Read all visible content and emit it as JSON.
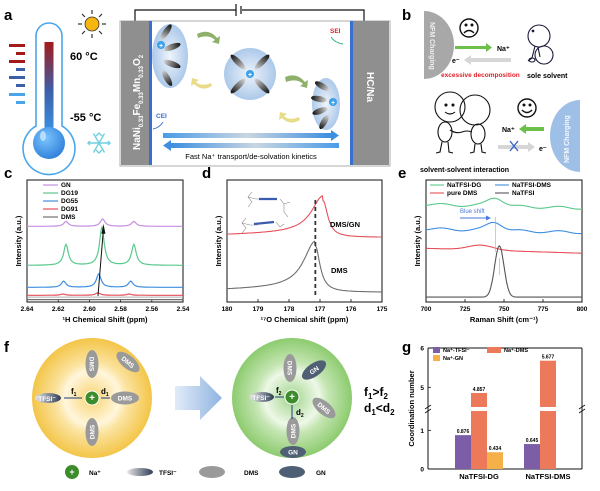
{
  "panels": {
    "a": {
      "label": "a",
      "temp_high": "60 °C",
      "temp_low": "-55 °C",
      "cathode": "NaNi0.33Fe0.33Mn0.33O2",
      "cathode_parts": [
        "NaNi",
        "0.33",
        "Fe",
        "0.33",
        "Mn",
        "0.33",
        "O",
        "2"
      ],
      "anode": "HC/Na",
      "sei": "SEI",
      "cei": "CEI",
      "caption": "Fast Na⁺ transport/de-solvation kinetics",
      "icons": [
        "thermometer-icon",
        "sun-icon",
        "snowflake-icon",
        "battery-icon"
      ]
    },
    "b": {
      "label": "b",
      "top_electrode": "NFM Charging",
      "na_label": "Na⁺",
      "e_label": "e⁻",
      "warning": "excessive decomposition",
      "sole": "sole solvent",
      "interaction": "solvent-solvent interaction",
      "bottom_electrode": "NFM Charging",
      "colors": {
        "warning": "#e0202a",
        "green_arrow": "#6cc04a",
        "grey_arrow": "#d6d6d6",
        "cross": "#3b66c8",
        "top_electrode": "#a8a8a8",
        "bottom_electrode": "#9fc0e6"
      }
    },
    "f": {
      "label": "f",
      "left_ions": [
        "TFSI⁻",
        "DMS",
        "DMS",
        "DMS",
        "DMS"
      ],
      "left_f": "f1",
      "left_d": "d1",
      "right_ions": [
        "TFSI⁻",
        "DMS",
        "GN",
        "DMS",
        "DMS",
        "GN"
      ],
      "right_f": "f2",
      "right_d": "d2",
      "relation1": "f1>f2",
      "relation2": "d1<d2",
      "legend": [
        {
          "name": "Na⁺"
        },
        {
          "name": "TFSI⁻"
        },
        {
          "name": "DMS"
        },
        {
          "name": "GN"
        }
      ]
    }
  },
  "chart_data": [
    {
      "panel": "c",
      "type": "line",
      "xlabel": "¹H Chemical Shift (ppm)",
      "ylabel": "Intensity (a.u.)",
      "xlim": [
        2.64,
        2.54
      ],
      "xticks": [
        "2.64",
        "2.62",
        "2.60",
        "2.58",
        "2.56",
        "2.54"
      ],
      "legend": "top-left",
      "series": [
        {
          "name": "GN",
          "color": "#c58fe0",
          "baseline": 0.62,
          "peaks": [
            {
              "x": 2.615,
              "h": 0.04
            },
            {
              "x": 2.5915,
              "h": 0.06
            },
            {
              "x": 2.5715,
              "h": 0.04
            }
          ]
        },
        {
          "name": "DG19",
          "color": "#59c98d",
          "baseline": 0.3,
          "peaks": [
            {
              "x": 2.615,
              "h": 0.17
            },
            {
              "x": 2.592,
              "h": 0.31
            },
            {
              "x": 2.5715,
              "h": 0.17
            }
          ]
        },
        {
          "name": "DG55",
          "color": "#3f8ee0",
          "baseline": 0.12,
          "peaks": [
            {
              "x": 2.6165,
              "h": 0.05
            },
            {
              "x": 2.594,
              "h": 0.11
            },
            {
              "x": 2.5735,
              "h": 0.05
            }
          ]
        },
        {
          "name": "DG91",
          "color": "#e6505a",
          "baseline": 0.055,
          "peaks": [
            {
              "x": 2.617,
              "h": 0.01
            },
            {
              "x": 2.5945,
              "h": 0.02
            },
            {
              "x": 2.5745,
              "h": 0.01
            }
          ]
        },
        {
          "name": "DMS",
          "color": "#707070",
          "baseline": 0.02,
          "peaks": []
        }
      ],
      "annotation": "shift-arrow"
    },
    {
      "panel": "d",
      "type": "line",
      "xlabel": "¹⁷O Chemical shift (ppm)",
      "ylabel": "Intensity (a.u.)",
      "xlim": [
        180,
        175
      ],
      "xticks": [
        "180",
        "179",
        "178",
        "177",
        "176",
        "175"
      ],
      "series": [
        {
          "name": "DMS/GN",
          "color": "#e6505a",
          "baseline": 0.55,
          "peak_x": 176.9,
          "peak_h": 0.3
        },
        {
          "name": "DMS",
          "color": "#707070",
          "baseline": 0.1,
          "peak_x": 177.15,
          "peak_h": 0.38
        }
      ],
      "reference_line_x": 177.15
    },
    {
      "panel": "e",
      "type": "line",
      "xlabel": "Raman Shift (cm⁻¹)",
      "ylabel": "Intensity (a.u.)",
      "xlim": [
        700,
        800
      ],
      "xticks": [
        "700",
        "725",
        "750",
        "775",
        "800"
      ],
      "legend": "top",
      "annotation": "Blue shift",
      "series": [
        {
          "name": "NaTFSI-DG",
          "color": "#59c98d",
          "baseline": 0.8,
          "peak_x": 744.5,
          "peak_h": 0.07
        },
        {
          "name": "NaTFSI-DMS",
          "color": "#3f8ee0",
          "baseline": 0.6,
          "peak_x": 744,
          "peak_h": 0.07
        },
        {
          "name": "pure DMS",
          "color": "#e6505a",
          "baseline": 0.44,
          "peak_x": 735,
          "peak_h": 0.04
        },
        {
          "name": "NaTFSI",
          "color": "#555555",
          "baseline": 0.04,
          "peak_x": 747,
          "peak_h": 0.42
        }
      ]
    },
    {
      "panel": "g",
      "type": "bar",
      "ylabel": "Coordination number",
      "categories": [
        "NaTFSI-DG",
        "NaTFSI-DMS"
      ],
      "yticks": [
        "0",
        "1",
        "5",
        "6"
      ],
      "axis_break": [
        1.5,
        4.5
      ],
      "legend": "top-left",
      "series": [
        {
          "name": "Na⁺-TFSI⁻",
          "color": "#7b5ea7",
          "values": [
            0.876,
            0.645
          ]
        },
        {
          "name": "Na⁺-DMS",
          "color": "#ec7a5a",
          "values": [
            4.857,
            5.677
          ]
        },
        {
          "name": "Na⁺-GN",
          "color": "#f5b04a",
          "values": [
            0.434,
            null
          ]
        }
      ]
    }
  ]
}
